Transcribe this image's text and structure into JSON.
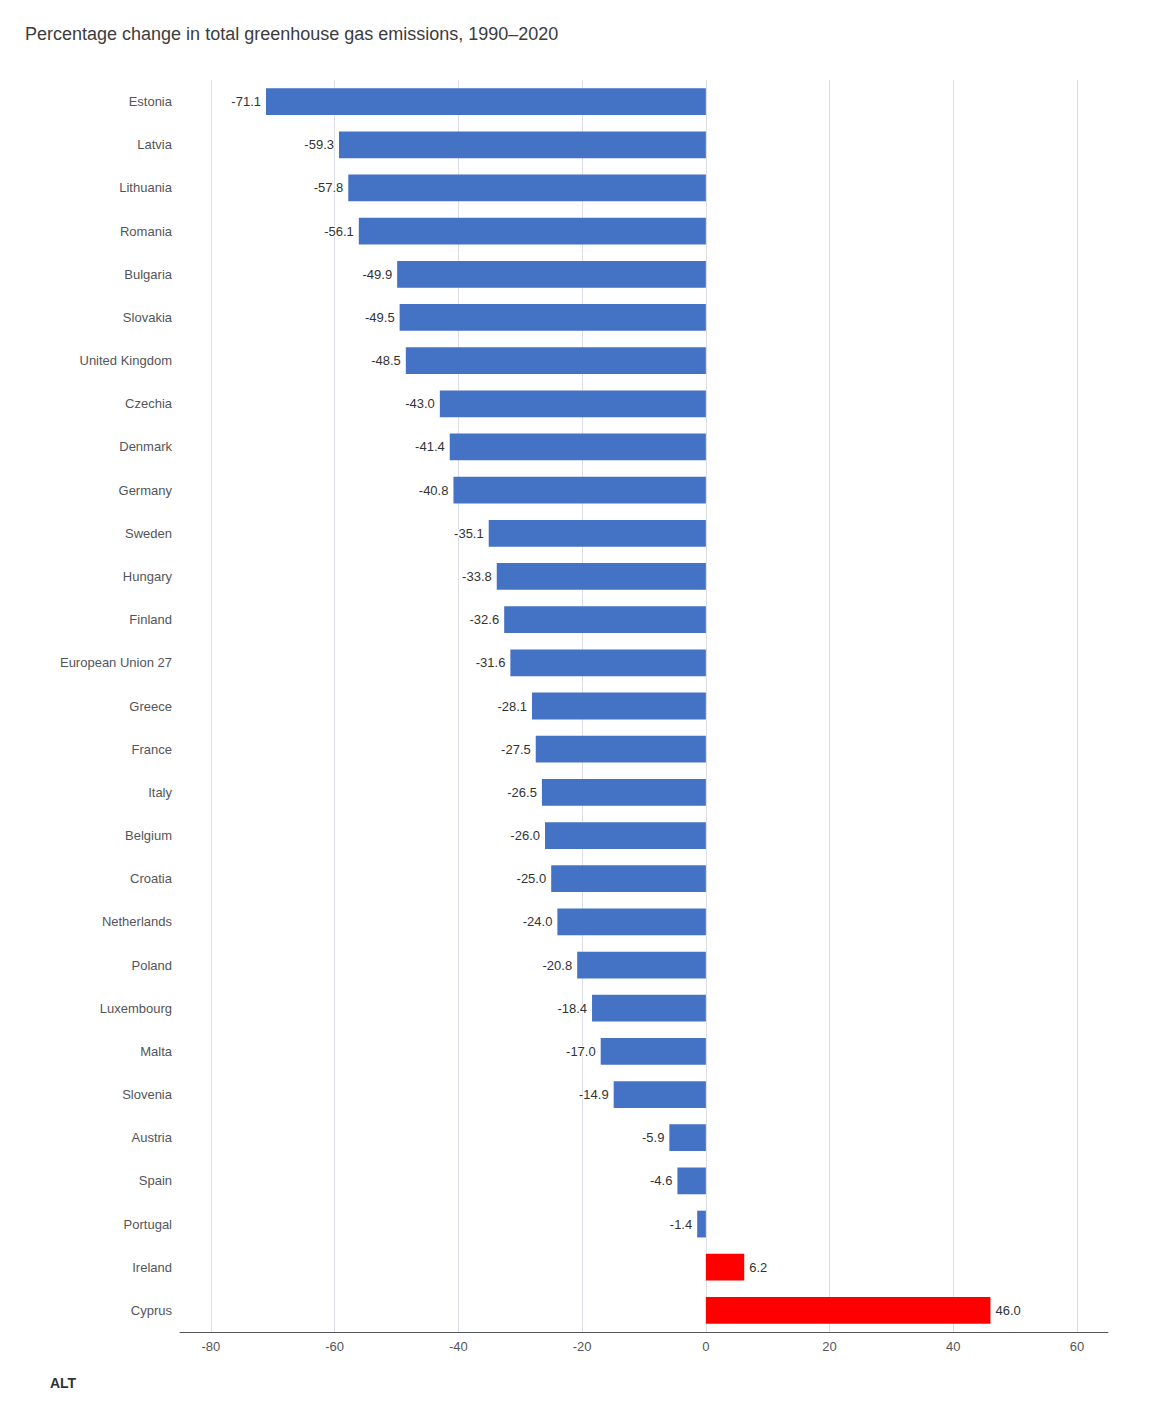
{
  "chart_data": {
    "type": "bar",
    "orientation": "horizontal",
    "title": "Percentage change in total greenhouse gas emissions, 1990–2020",
    "categories": [
      "Estonia",
      "Latvia",
      "Lithuania",
      "Romania",
      "Bulgaria",
      "Slovakia",
      "United Kingdom",
      "Czechia",
      "Denmark",
      "Germany",
      "Sweden",
      "Hungary",
      "Finland",
      "European Union 27",
      "Greece",
      "France",
      "Italy",
      "Belgium",
      "Croatia",
      "Netherlands",
      "Poland",
      "Luxembourg",
      "Malta",
      "Slovenia",
      "Austria",
      "Spain",
      "Portugal",
      "Ireland",
      "Cyprus"
    ],
    "values": [
      -71.1,
      -59.3,
      -57.8,
      -56.1,
      -49.9,
      -49.5,
      -48.5,
      -43.0,
      -41.4,
      -40.8,
      -35.1,
      -33.8,
      -32.6,
      -31.6,
      -28.1,
      -27.5,
      -26.5,
      -26.0,
      -25.0,
      -24.0,
      -20.8,
      -18.4,
      -17.0,
      -14.9,
      -5.9,
      -4.6,
      -1.4,
      6.2,
      46.0
    ],
    "value_labels": [
      "-71.1",
      "-59.3",
      "-57.8",
      "-56.1",
      "-49.9",
      "-49.5",
      "-48.5",
      "-43.0",
      "-41.4",
      "-40.8",
      "-35.1",
      "-33.8",
      "-32.6",
      "-31.6",
      "-28.1",
      "-27.5",
      "-26.5",
      "-26.0",
      "-25.0",
      "-24.0",
      "-20.8",
      "-18.4",
      "-17.0",
      "-14.9",
      "-5.9",
      "-4.6",
      "-1.4",
      "6.2",
      "46.0"
    ],
    "colors": [
      "#4472C4",
      "#4472C4",
      "#4472C4",
      "#4472C4",
      "#4472C4",
      "#4472C4",
      "#4472C4",
      "#4472C4",
      "#4472C4",
      "#4472C4",
      "#4472C4",
      "#4472C4",
      "#4472C4",
      "#4472C4",
      "#4472C4",
      "#4472C4",
      "#4472C4",
      "#4472C4",
      "#4472C4",
      "#4472C4",
      "#4472C4",
      "#4472C4",
      "#4472C4",
      "#4472C4",
      "#4472C4",
      "#4472C4",
      "#4472C4",
      "#FF0000",
      "#FF0000"
    ],
    "xlim": [
      -85,
      65
    ],
    "xticks": [
      -80,
      -60,
      -40,
      -20,
      0,
      20,
      40,
      60
    ],
    "grid": true,
    "data_labels": true,
    "annotations": [
      "ALT"
    ]
  }
}
